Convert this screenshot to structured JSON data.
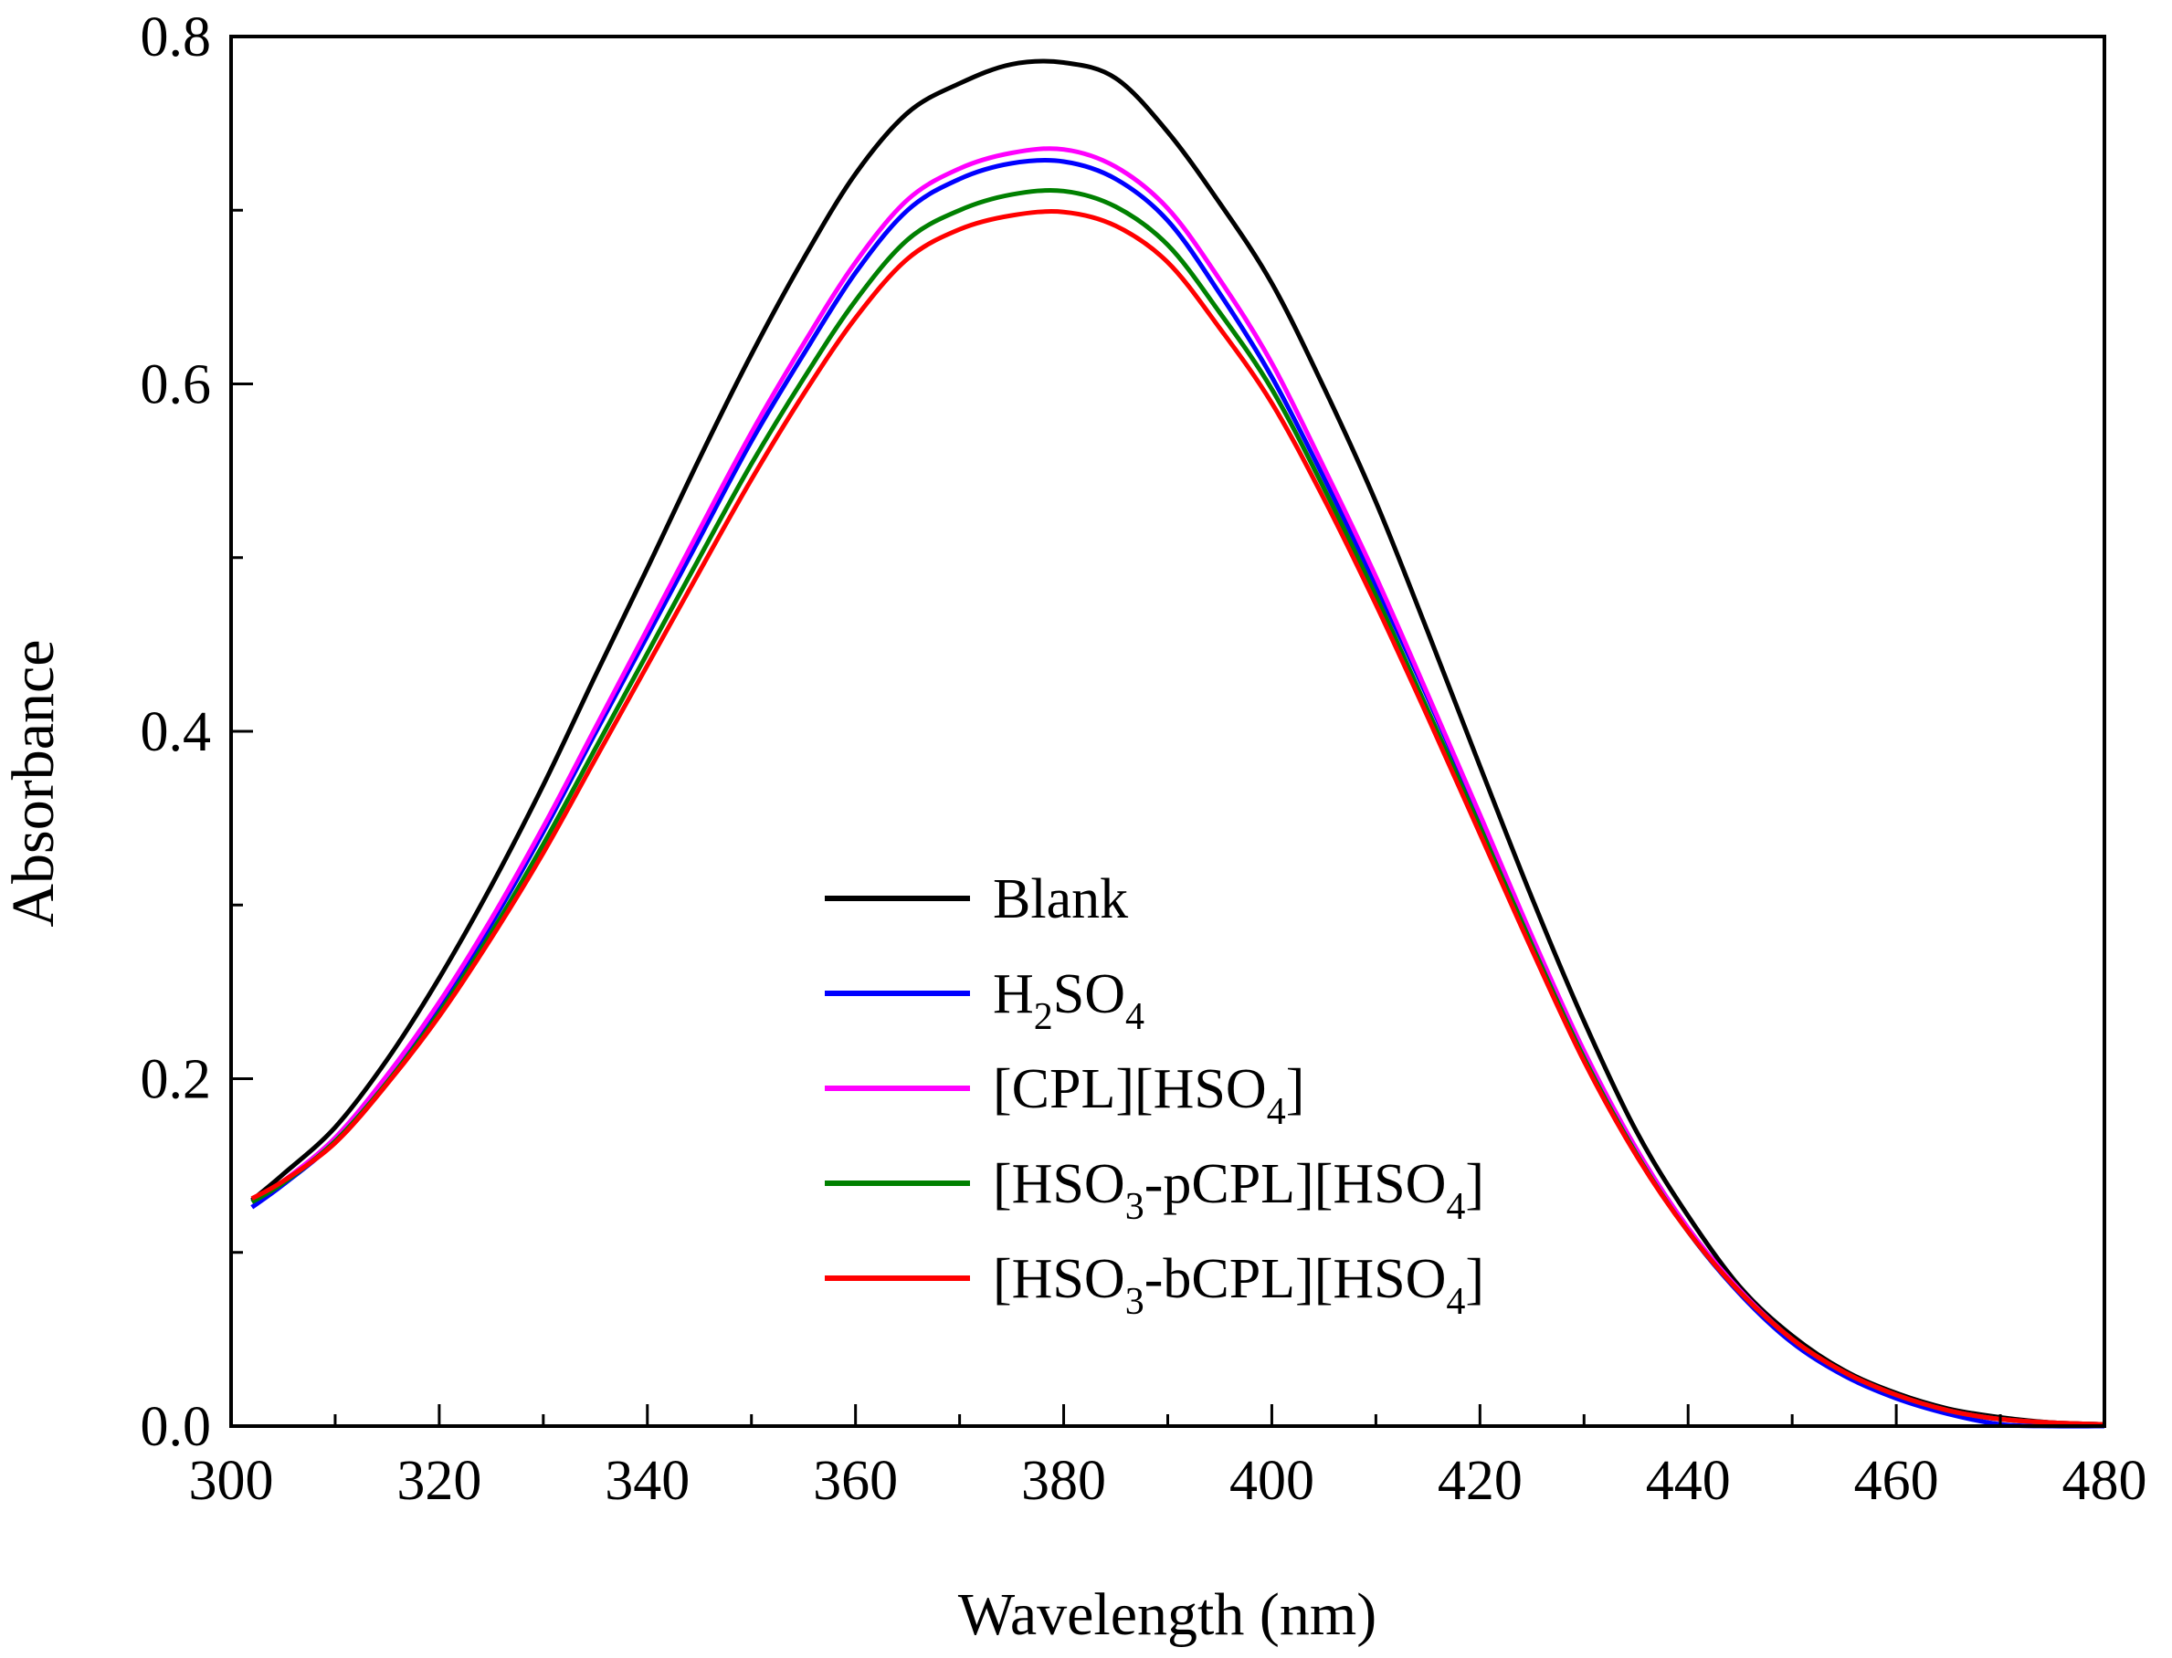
{
  "chart_data": {
    "type": "line",
    "title": "",
    "xlabel": "Wavelength (nm)",
    "ylabel": "Absorbance",
    "xlim": [
      300,
      480
    ],
    "ylim": [
      0.0,
      0.8
    ],
    "x_ticks": [
      "300",
      "320",
      "340",
      "360",
      "380",
      "400",
      "420",
      "440",
      "460",
      "480"
    ],
    "y_ticks": [
      "0.0",
      "0.2",
      "0.4",
      "0.6",
      "0.8"
    ],
    "grid": false,
    "legend_position": "center-bottom",
    "x": [
      302,
      305,
      310,
      315,
      320,
      325,
      330,
      335,
      340,
      345,
      350,
      355,
      360,
      365,
      370,
      375,
      380,
      385,
      390,
      395,
      400,
      405,
      410,
      415,
      420,
      425,
      430,
      435,
      440,
      445,
      450,
      455,
      460,
      465,
      470,
      475,
      480
    ],
    "series": [
      {
        "name": "Blank",
        "label_parts": [
          {
            "text": "Blank",
            "sub": false
          }
        ],
        "color": "#000000",
        "values": [
          0.13,
          0.145,
          0.172,
          0.211,
          0.258,
          0.311,
          0.369,
          0.432,
          0.494,
          0.557,
          0.617,
          0.672,
          0.721,
          0.756,
          0.773,
          0.784,
          0.785,
          0.776,
          0.745,
          0.704,
          0.658,
          0.598,
          0.532,
          0.457,
          0.38,
          0.304,
          0.233,
          0.17,
          0.121,
          0.08,
          0.052,
          0.032,
          0.019,
          0.01,
          0.005,
          0.002,
          0.001
        ]
      },
      {
        "name": "H2SO4",
        "label_parts": [
          {
            "text": "H",
            "sub": false
          },
          {
            "text": "2",
            "sub": true
          },
          {
            "text": "SO",
            "sub": false
          },
          {
            "text": "4",
            "sub": true
          }
        ],
        "color": "#0000ff",
        "values": [
          0.126,
          0.139,
          0.164,
          0.2,
          0.241,
          0.289,
          0.342,
          0.399,
          0.455,
          0.511,
          0.567,
          0.617,
          0.664,
          0.7,
          0.718,
          0.727,
          0.728,
          0.718,
          0.694,
          0.652,
          0.604,
          0.546,
          0.484,
          0.419,
          0.35,
          0.28,
          0.214,
          0.158,
          0.112,
          0.076,
          0.048,
          0.029,
          0.016,
          0.007,
          0.001,
          0.0,
          0.0
        ]
      },
      {
        "name": "[CPL][HSO4]",
        "label_parts": [
          {
            "text": "[CPL][HSO",
            "sub": false
          },
          {
            "text": "4",
            "sub": true
          },
          {
            "text": "]",
            "sub": false
          }
        ],
        "color": "#ff00ff",
        "values": [
          0.129,
          0.141,
          0.166,
          0.202,
          0.244,
          0.292,
          0.345,
          0.402,
          0.459,
          0.516,
          0.572,
          0.623,
          0.67,
          0.706,
          0.724,
          0.733,
          0.735,
          0.725,
          0.701,
          0.66,
          0.612,
          0.552,
          0.489,
          0.421,
          0.352,
          0.282,
          0.216,
          0.16,
          0.114,
          0.078,
          0.05,
          0.031,
          0.018,
          0.009,
          0.004,
          0.002,
          0.001
        ]
      },
      {
        "name": "[HSO3-pCPL][HSO4]",
        "label_parts": [
          {
            "text": "[HSO",
            "sub": false
          },
          {
            "text": "3",
            "sub": true
          },
          {
            "text": "-pCPL][HSO",
            "sub": false
          },
          {
            "text": "4",
            "sub": true
          },
          {
            "text": "]",
            "sub": false
          }
        ],
        "color": "#008000",
        "values": [
          0.129,
          0.14,
          0.164,
          0.198,
          0.238,
          0.284,
          0.335,
          0.39,
          0.445,
          0.5,
          0.554,
          0.603,
          0.648,
          0.683,
          0.7,
          0.709,
          0.711,
          0.702,
          0.68,
          0.641,
          0.597,
          0.54,
          0.478,
          0.412,
          0.345,
          0.277,
          0.212,
          0.157,
          0.112,
          0.077,
          0.05,
          0.031,
          0.018,
          0.009,
          0.004,
          0.002,
          0.001
        ]
      },
      {
        "name": "[HSO3-bCPL][HSO4]",
        "label_parts": [
          {
            "text": "[HSO",
            "sub": false
          },
          {
            "text": "3",
            "sub": true
          },
          {
            "text": "-bCPL][HSO",
            "sub": false
          },
          {
            "text": "4",
            "sub": true
          },
          {
            "text": "]",
            "sub": false
          }
        ],
        "color": "#ff0000",
        "values": [
          0.131,
          0.141,
          0.163,
          0.197,
          0.236,
          0.281,
          0.33,
          0.384,
          0.438,
          0.492,
          0.545,
          0.594,
          0.638,
          0.672,
          0.689,
          0.697,
          0.699,
          0.691,
          0.67,
          0.632,
          0.589,
          0.534,
          0.473,
          0.408,
          0.341,
          0.274,
          0.21,
          0.156,
          0.112,
          0.077,
          0.05,
          0.031,
          0.018,
          0.009,
          0.004,
          0.002,
          0.001
        ]
      }
    ]
  }
}
